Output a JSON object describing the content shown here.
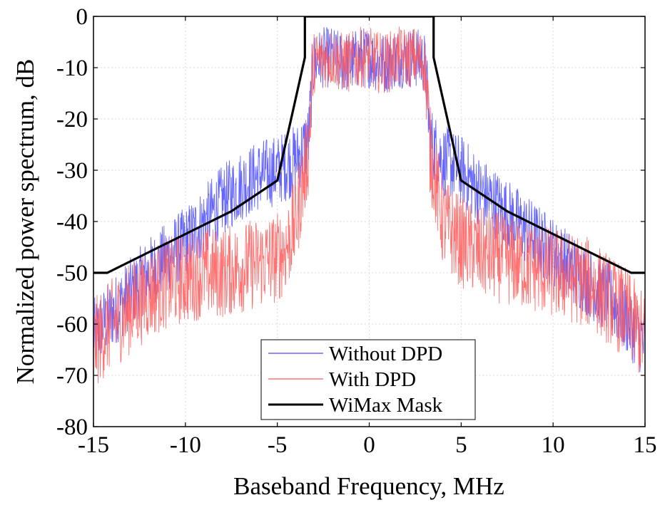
{
  "chart_data": {
    "type": "line",
    "title": "",
    "xlabel": "Baseband Frequency, MHz",
    "ylabel": "Normalized power spectrum, dB",
    "xlim": [
      -15,
      15
    ],
    "ylim": [
      -80,
      0
    ],
    "xticks": [
      -15,
      -10,
      -5,
      0,
      5,
      10,
      15
    ],
    "yticks": [
      0,
      -10,
      -20,
      -30,
      -40,
      -50,
      -60,
      -70,
      -80
    ],
    "xtick_labels": [
      "-15",
      "-10",
      "-5",
      "0",
      "5",
      "10",
      "15"
    ],
    "ytick_labels": [
      "0",
      "-10",
      "-20",
      "-30",
      "-40",
      "-50",
      "-60",
      "-70",
      "-80"
    ],
    "grid": true,
    "legend": "bottom-center",
    "series": [
      {
        "name": "Without DPD",
        "color": "#4a4aff",
        "x": [
          -15,
          -14,
          -13,
          -12,
          -11,
          -10,
          -9,
          -8,
          -7,
          -6,
          -5,
          -4,
          -3.6,
          -3.3,
          -3.2,
          -3.1,
          -3.0,
          -2.5,
          -2.0,
          -1.5,
          -1.0,
          -0.5,
          0,
          0.5,
          1.0,
          1.5,
          2.0,
          2.5,
          3.0,
          3.1,
          3.2,
          3.3,
          3.6,
          4,
          5,
          6,
          7,
          8,
          9,
          10,
          11,
          12,
          13,
          14,
          15
        ],
        "y": [
          -62,
          -58,
          -54,
          -50,
          -47,
          -44,
          -40,
          -36,
          -33,
          -31,
          -30,
          -28,
          -26,
          -24,
          -18,
          -12,
          -9,
          -8,
          -8,
          -9,
          -9,
          -8,
          -8,
          -9,
          -9,
          -8,
          -8,
          -8,
          -9,
          -12,
          -18,
          -24,
          -26,
          -28,
          -30,
          -34,
          -37,
          -40,
          -43,
          -46,
          -49,
          -52,
          -55,
          -59,
          -64
        ]
      },
      {
        "name": "With DPD",
        "color": "#ff5a5a",
        "x": [
          -15,
          -14,
          -13,
          -12,
          -11,
          -10,
          -9,
          -8,
          -7,
          -6,
          -5,
          -4.5,
          -4,
          -3.6,
          -3.3,
          -3.2,
          -3.1,
          -3.0,
          -2.5,
          -2.0,
          -1.5,
          -1.0,
          -0.5,
          0,
          0.5,
          1.0,
          1.5,
          2.0,
          2.5,
          3.0,
          3.1,
          3.2,
          3.3,
          3.6,
          4,
          5,
          6,
          7,
          8,
          9,
          10,
          11,
          12,
          13,
          14,
          15
        ],
        "y": [
          -64,
          -60,
          -57,
          -54,
          -52,
          -51,
          -50,
          -50,
          -49,
          -48,
          -47,
          -45,
          -40,
          -32,
          -26,
          -18,
          -12,
          -9,
          -8,
          -8,
          -9,
          -9,
          -8,
          -8,
          -9,
          -9,
          -8,
          -8,
          -8,
          -9,
          -12,
          -18,
          -26,
          -32,
          -40,
          -44,
          -46,
          -47,
          -48,
          -49,
          -50,
          -51,
          -52,
          -55,
          -58,
          -63
        ]
      },
      {
        "name": "WiMax Mask",
        "color": "#000000",
        "x": [
          -15,
          -14.25,
          -7.5,
          -5,
          -3.5,
          -3.5,
          3.5,
          3.5,
          5,
          7.5,
          14.25,
          15
        ],
        "y": [
          -50,
          -50,
          -38,
          -32,
          -8,
          0,
          0,
          -8,
          -32,
          -38,
          -50,
          -50
        ]
      }
    ]
  }
}
